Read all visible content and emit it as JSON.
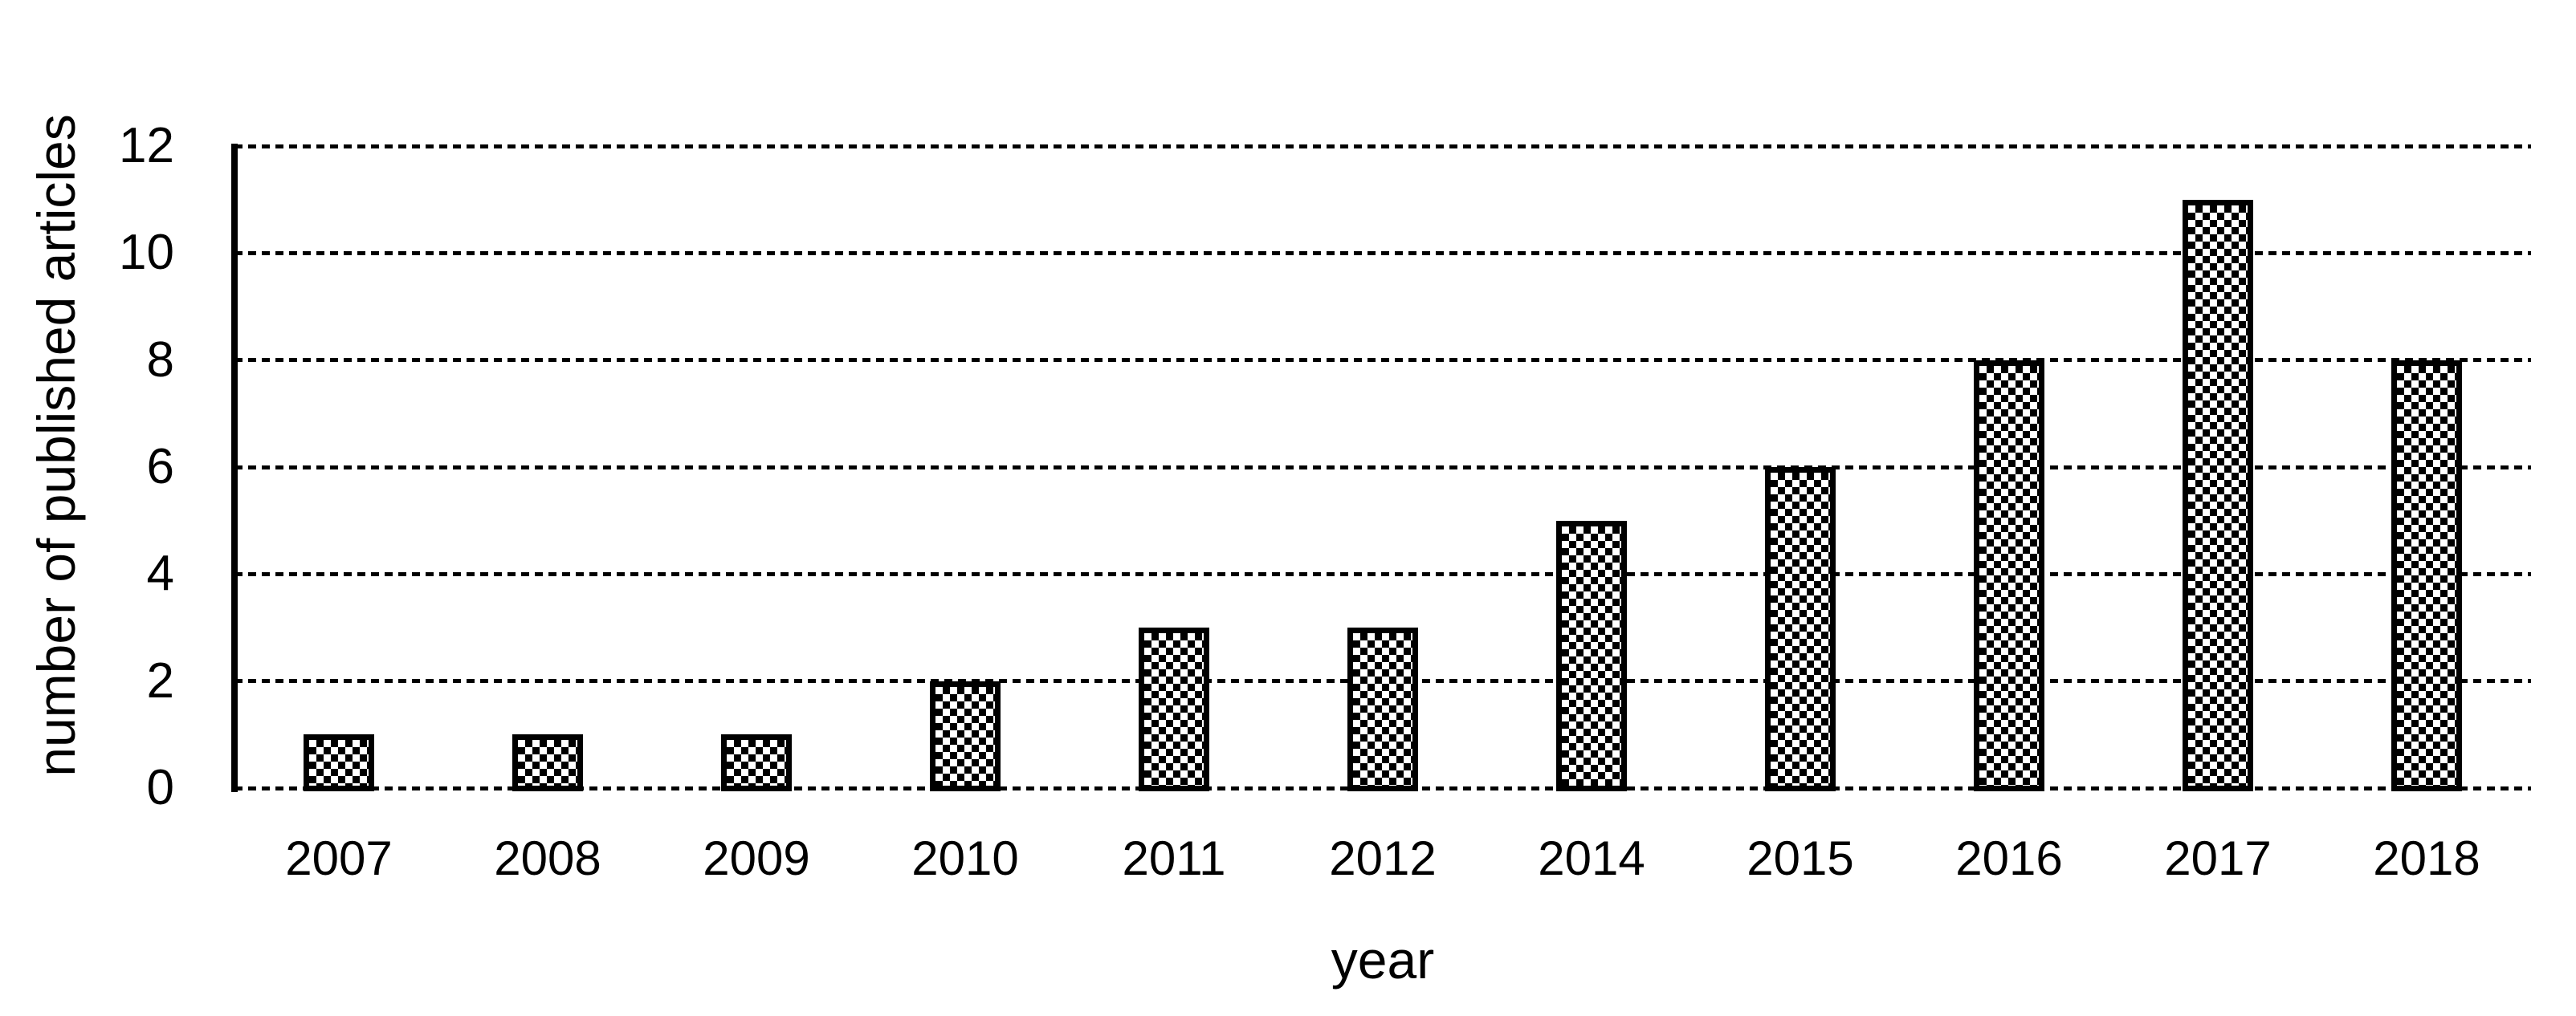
{
  "chart_data": {
    "type": "bar",
    "title": "",
    "categories": [
      "2007",
      "2008",
      "2009",
      "2010",
      "2011",
      "2012",
      "2014",
      "2015",
      "2016",
      "2017",
      "2018"
    ],
    "values": [
      1,
      1,
      1,
      2,
      3,
      3,
      5,
      6,
      8,
      11,
      8
    ],
    "xlabel": "year",
    "ylabel": "number of published articles",
    "ylim": [
      0,
      12
    ],
    "yticks": [
      0,
      2,
      4,
      6,
      8,
      10,
      12
    ],
    "grid": "horizontal dotted lines at every y tick, including baseline",
    "legend": "none",
    "bar_fill_pattern": "black-white checkerboard",
    "bar_border_color": "#000000",
    "axis_color": "#000000",
    "background_color": "#ffffff",
    "text_color": "#000000"
  }
}
